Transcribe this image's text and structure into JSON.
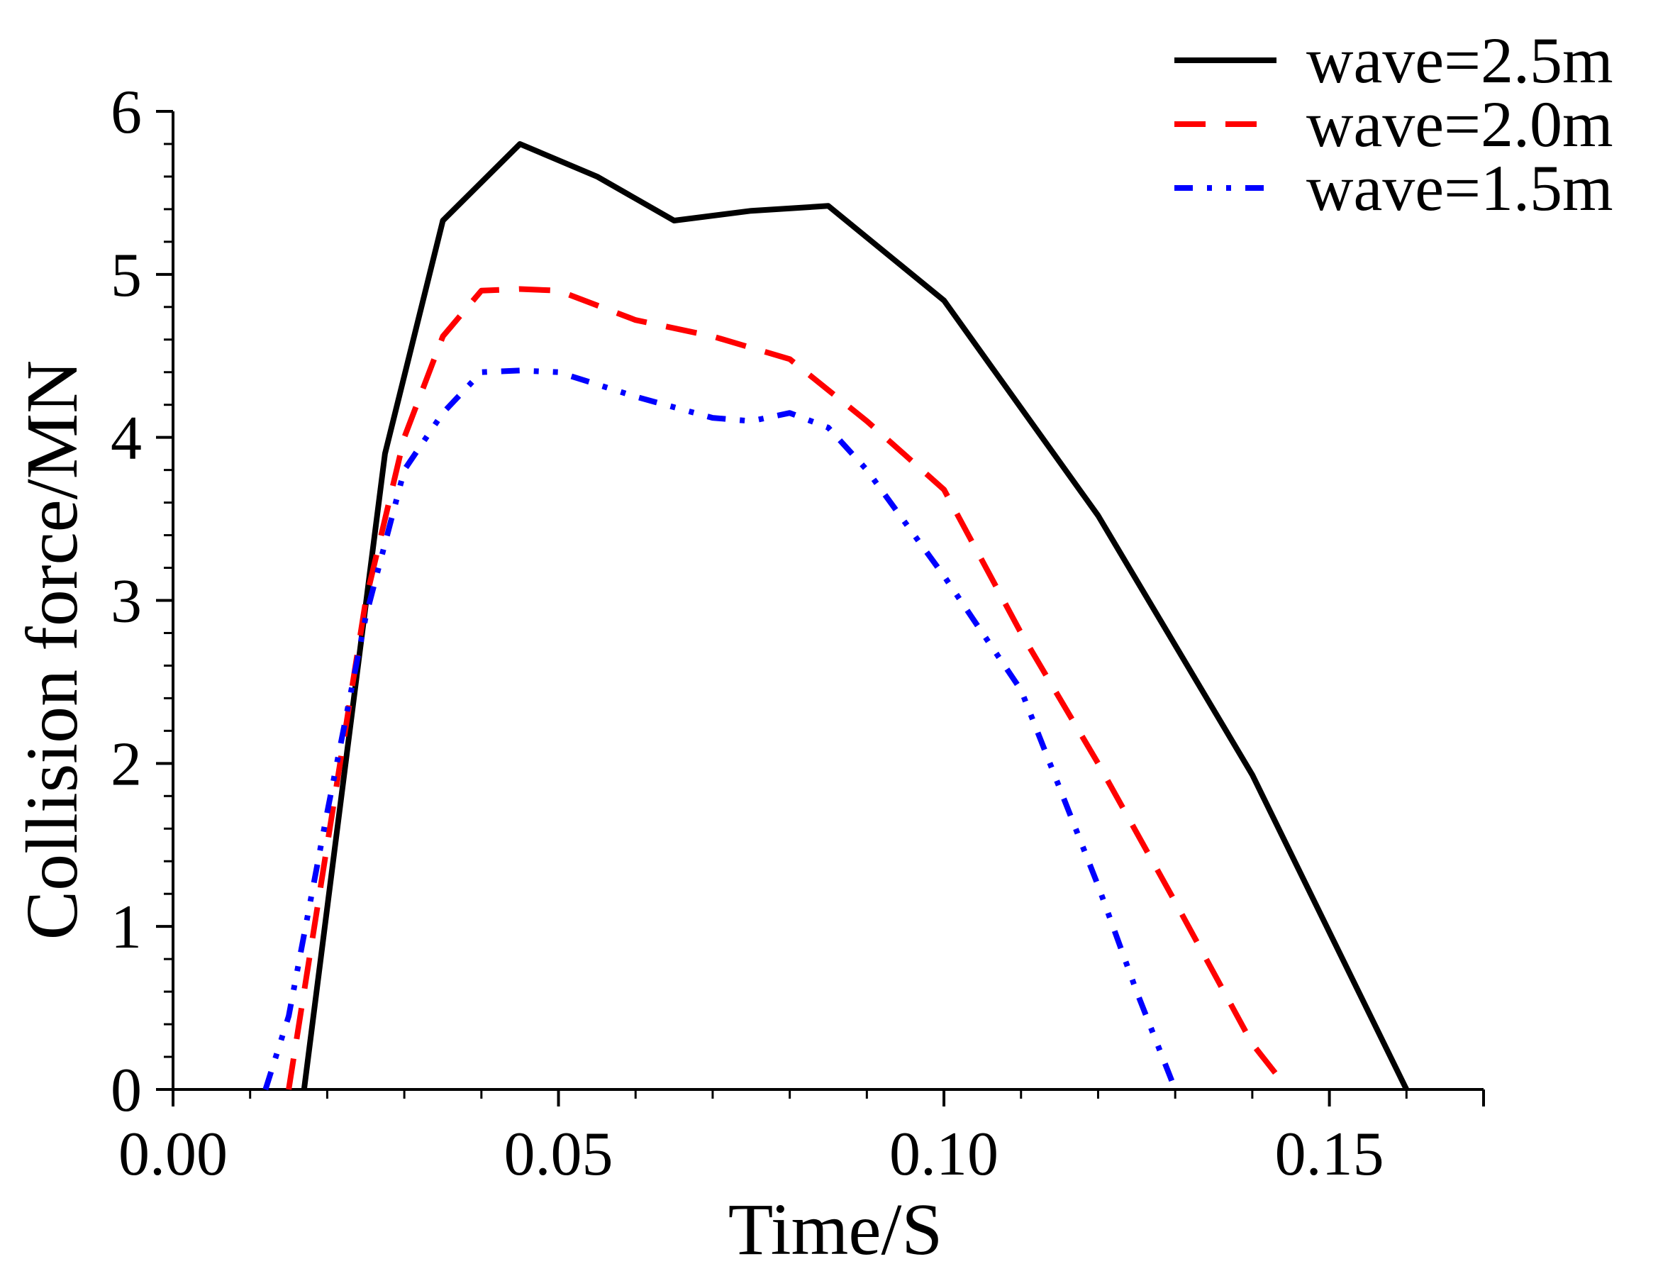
{
  "chart_data": {
    "type": "line",
    "title": "",
    "xlabel": "Time/S",
    "ylabel": "Collision force/MN",
    "xlim": [
      0.0,
      0.17
    ],
    "ylim": [
      0,
      6
    ],
    "xticks": [
      0.0,
      0.05,
      0.1,
      0.15
    ],
    "xtick_labels": [
      "0.00",
      "0.05",
      "0.10",
      "0.15"
    ],
    "yticks": [
      0,
      1,
      2,
      3,
      4,
      5,
      6
    ],
    "ytick_labels": [
      "0",
      "1",
      "2",
      "3",
      "4",
      "5",
      "6"
    ],
    "grid": false,
    "legend_position": "top-right",
    "series": [
      {
        "name": "wave=2.5m",
        "color": "#000000",
        "style": "solid",
        "x": [
          0.017,
          0.0275,
          0.035,
          0.045,
          0.055,
          0.065,
          0.075,
          0.085,
          0.1,
          0.12,
          0.14,
          0.16
        ],
        "y": [
          0,
          3.9,
          5.33,
          5.8,
          5.6,
          5.33,
          5.39,
          5.42,
          4.84,
          3.52,
          1.93,
          0
        ]
      },
      {
        "name": "wave=2.0m",
        "color": "#ff0000",
        "style": "dashed",
        "x": [
          0.015,
          0.02,
          0.025,
          0.03,
          0.035,
          0.04,
          0.045,
          0.05,
          0.06,
          0.07,
          0.08,
          0.09,
          0.1,
          0.11,
          0.12,
          0.13,
          0.14,
          0.143
        ],
        "y": [
          0,
          1.5,
          3.0,
          4.0,
          4.62,
          4.9,
          4.91,
          4.9,
          4.72,
          4.62,
          4.48,
          4.1,
          3.68,
          2.8,
          2.0,
          1.15,
          0.28,
          0.1
        ]
      },
      {
        "name": "wave=1.5m",
        "color": "#0000ff",
        "style": "dashdotdot",
        "x": [
          0.012,
          0.015,
          0.02,
          0.025,
          0.03,
          0.035,
          0.04,
          0.045,
          0.05,
          0.06,
          0.07,
          0.075,
          0.08,
          0.085,
          0.09,
          0.1,
          0.11,
          0.12,
          0.125,
          0.13
        ],
        "y": [
          0,
          0.45,
          1.7,
          2.9,
          3.8,
          4.15,
          4.4,
          4.41,
          4.4,
          4.25,
          4.12,
          4.1,
          4.15,
          4.06,
          3.8,
          3.15,
          2.45,
          1.25,
          0.6,
          0
        ]
      }
    ]
  }
}
